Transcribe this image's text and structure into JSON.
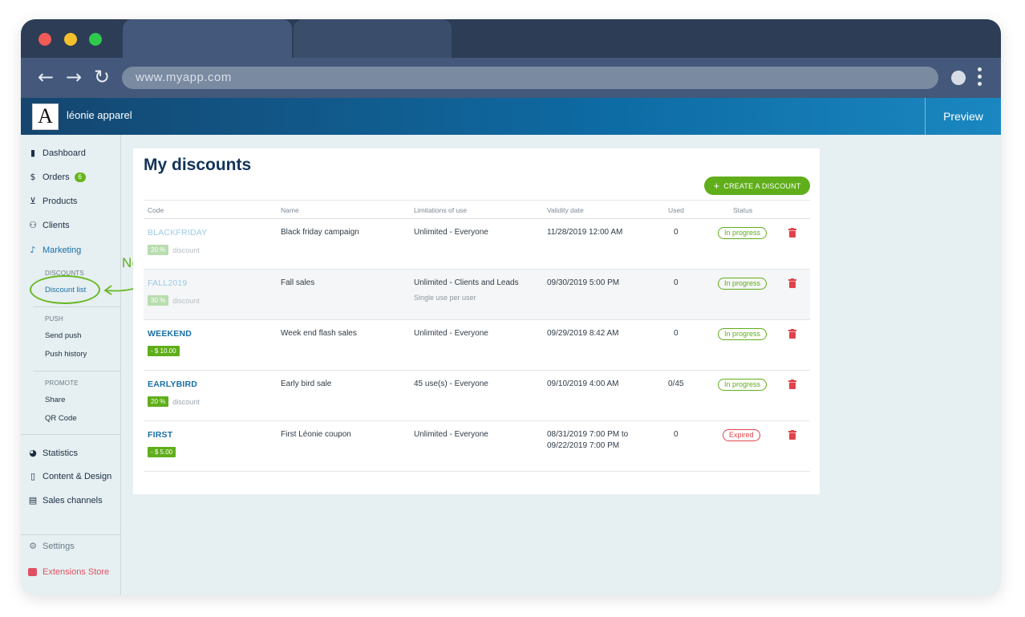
{
  "browser": {
    "url": "www.myapp.com",
    "tabs": [
      "",
      ""
    ]
  },
  "app": {
    "logo_letter": "A",
    "brand_name": "léonie apparel",
    "preview_label": "Preview"
  },
  "sidebar": {
    "items": [
      {
        "label": "Dashboard",
        "icon": "bar-chart-icon"
      },
      {
        "label": "Orders",
        "icon": "dollar-icon",
        "badge": "6"
      },
      {
        "label": "Products",
        "icon": "cart-icon"
      },
      {
        "label": "Clients",
        "icon": "people-icon"
      },
      {
        "label": "Marketing",
        "icon": "bell-icon"
      }
    ],
    "marketing_sections": {
      "discounts_heading": "DISCOUNTS",
      "discount_list": "Discount list",
      "push_heading": "PUSH",
      "send_push": "Send push",
      "push_history": "Push history",
      "promote_heading": "PROMOTE",
      "share": "Share",
      "qr_code": "QR Code"
    },
    "more_items": [
      {
        "label": "Statistics",
        "icon": "pie-chart-icon"
      },
      {
        "label": "Content & Design",
        "icon": "phone-icon"
      },
      {
        "label": "Sales channels",
        "icon": "store-icon"
      }
    ],
    "settings": "Settings",
    "extensions_store": "Extensions Store"
  },
  "annotation": {
    "text": "New menu",
    "color": "#5fae1a"
  },
  "main": {
    "title": "My discounts",
    "create_button": "CREATE A DISCOUNT",
    "columns": [
      "Code",
      "Name",
      "Limitations of use",
      "Validity date",
      "Used",
      "Status"
    ],
    "rows": [
      {
        "code": "BLACKFRIDAY",
        "amount": "20 %",
        "amount_suffix": "discount",
        "name": "Black friday campaign",
        "limitation": "Unlimited - Everyone",
        "limitation_note": "",
        "validity": "11/28/2019 12:00 AM",
        "validity_2": "",
        "used": "0",
        "status": "In progress",
        "status_kind": "progress"
      },
      {
        "code": "FALL2019",
        "amount": "30 %",
        "amount_suffix": "discount",
        "name": "Fall sales",
        "limitation": "Unlimited - Clients and Leads",
        "limitation_note": "Single use per user",
        "validity": "09/30/2019 5:00 PM",
        "validity_2": "",
        "used": "0",
        "status": "In progress",
        "status_kind": "progress"
      },
      {
        "code": "WEEKEND",
        "amount": "- $ 10.00",
        "amount_suffix": "",
        "name": "Week end flash sales",
        "limitation": "Unlimited - Everyone",
        "limitation_note": "",
        "validity": "09/29/2019 8:42 AM",
        "validity_2": "",
        "used": "0",
        "status": "In progress",
        "status_kind": "progress"
      },
      {
        "code": "EARLYBIRD",
        "amount": "20 %",
        "amount_suffix": "discount",
        "name": "Early bird sale",
        "limitation": "45 use(s) - Everyone",
        "limitation_note": "",
        "validity": "09/10/2019 4:00 AM",
        "validity_2": "",
        "used": "0/45",
        "status": "In progress",
        "status_kind": "progress"
      },
      {
        "code": "FIRST",
        "amount": "- $ 5.00",
        "amount_suffix": "",
        "name": "First Léonie coupon",
        "limitation": "Unlimited - Everyone",
        "limitation_note": "",
        "validity": "08/31/2019 7:00 PM to",
        "validity_2": "09/22/2019 7:00 PM",
        "used": "0",
        "status": "Expired",
        "status_kind": "expired"
      }
    ]
  },
  "colors": {
    "accent_green": "#5fae1a",
    "link_blue": "#1a6fa8",
    "danger_red": "#e0434a",
    "header_navy": "#14466f"
  }
}
